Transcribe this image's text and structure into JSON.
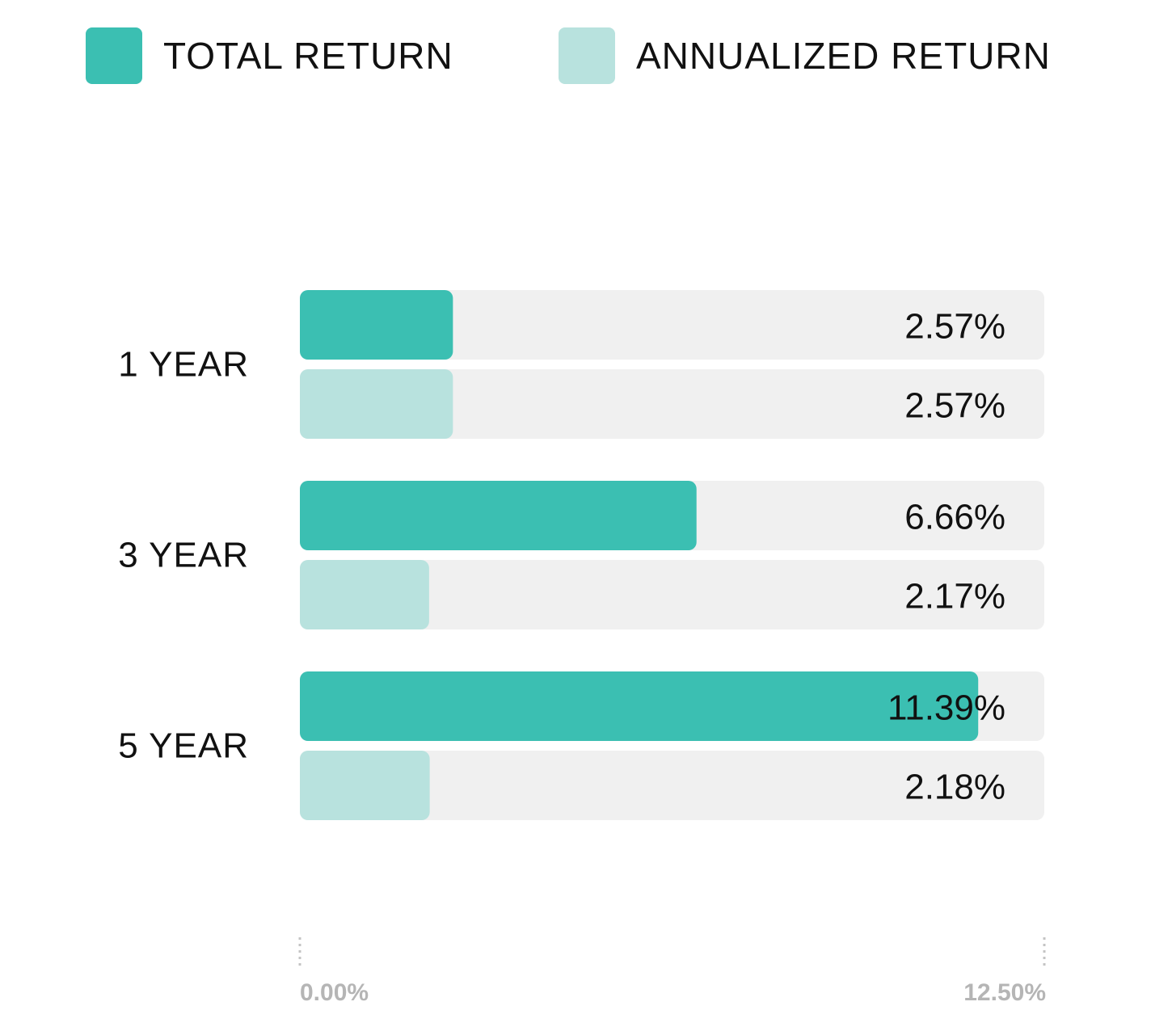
{
  "legend": [
    {
      "label": "TOTAL RETURN",
      "color": "#3bbfb2"
    },
    {
      "label": "ANNUALIZED RETURN",
      "color": "#b8e2de"
    }
  ],
  "chart_data": {
    "type": "bar",
    "orientation": "horizontal",
    "categories": [
      "1 YEAR",
      "3 YEAR",
      "5 YEAR"
    ],
    "series": [
      {
        "name": "TOTAL RETURN",
        "color": "#3bbfb2",
        "values": [
          2.57,
          6.66,
          11.39
        ],
        "labels": [
          "2.57%",
          "6.66%",
          "11.39%"
        ]
      },
      {
        "name": "ANNUALIZED RETURN",
        "color": "#b8e2de",
        "values": [
          2.57,
          2.17,
          2.18
        ],
        "labels": [
          "2.57%",
          "2.17%",
          "2.18%"
        ]
      }
    ],
    "xlim": [
      0,
      12.5
    ],
    "axis_labels": [
      "0.00%",
      "12.50%"
    ],
    "track_color": "#f0f0f0",
    "grid": false,
    "legend_position": "top"
  }
}
